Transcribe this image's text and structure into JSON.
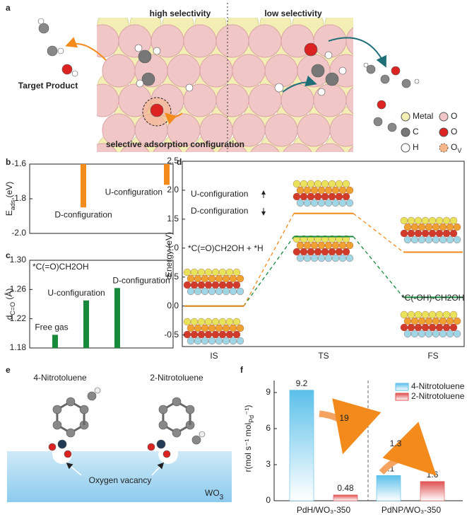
{
  "panel_labels": [
    "a",
    "b",
    "c",
    "d",
    "e",
    "f"
  ],
  "panel_a": {
    "high": "high selectivity",
    "low": "low selectivity",
    "target": "Target Product",
    "adsorption": "selective adsorption configuration",
    "legend": [
      {
        "label": "Metal"
      },
      {
        "label": "O"
      },
      {
        "label": "C"
      },
      {
        "label": "O"
      },
      {
        "label": "H"
      },
      {
        "label": "O",
        "sub": "V"
      }
    ]
  },
  "panel_e": {
    "molecules": [
      "4-Nitrotoluene",
      "2-Nitrotoluene"
    ],
    "vacancy": "Oxygen vacancy",
    "support": "WO",
    "support_sub": "3"
  },
  "chart_data": [
    {
      "type": "bar",
      "ylabel": [
        "E",
        "ads",
        " (eV)"
      ],
      "categories": [
        "D-configuration",
        "U-configuration"
      ],
      "values": [
        -1.85,
        -1.72
      ],
      "color": "#f28a1c",
      "ylim": [
        -2.0,
        -1.6
      ],
      "yticks": [
        {
          "value": -2.0,
          "label": "-2.0"
        },
        -1.8,
        -1.6
      ]
    },
    {
      "type": "bar",
      "annotation": "*C(=O)CH2OH",
      "ylabel": [
        "d",
        "C=O",
        " (Å)"
      ],
      "categories": [
        "Free gas",
        "U-configuration",
        "D-configuration"
      ],
      "values": [
        1.198,
        1.245,
        1.262
      ],
      "color": "#178a3c",
      "ylim": [
        1.18,
        1.3
      ],
      "yticks": [
        1.18,
        1.22,
        1.26,
        {
          "value": 1.3,
          "label": "1.30"
        }
      ]
    },
    {
      "type": "line",
      "ylabel": "Energy (eV)",
      "categories": [
        "IS",
        "TS",
        "FS"
      ],
      "series": [
        {
          "name": "U-configuration",
          "color": "#f28a1c",
          "values": [
            0,
            1.6,
            0.93
          ]
        },
        {
          "name": "D-configuration",
          "color": "#178a3c",
          "values": [
            0,
            1.2,
            0.15
          ]
        }
      ],
      "ylim": [
        -0.7,
        2.5
      ],
      "yticks": [
        {
          "value": -0.5,
          "label": "-0.5"
        },
        {
          "value": 0,
          "label": "0.0"
        },
        0.5,
        {
          "value": 1,
          "label": "1.0"
        },
        1.5,
        {
          "value": 2,
          "label": "2.0"
        },
        2.5
      ],
      "annotations": [
        "*C(=O)CH2OH + *H",
        "*C(-OH)-CH2OH"
      ]
    },
    {
      "type": "grouped-bar",
      "ylabel": [
        "r(mol s⁻¹ mol",
        "Pd",
        "⁻¹)"
      ],
      "categories": [
        "PdH/WO₃-350",
        "PdNP/WO₃-350"
      ],
      "series": [
        {
          "name": "4-Nitrotoluene",
          "color": "#5bc0ea",
          "values": [
            9.2,
            2.1
          ]
        },
        {
          "name": "2-Nitrotoluene",
          "color": "#e05050",
          "values": [
            0.48,
            1.6
          ]
        }
      ],
      "ratios": [
        "19",
        "1.3"
      ],
      "ylim": [
        0,
        10
      ],
      "yticks": [
        0,
        3,
        6,
        9
      ]
    }
  ]
}
